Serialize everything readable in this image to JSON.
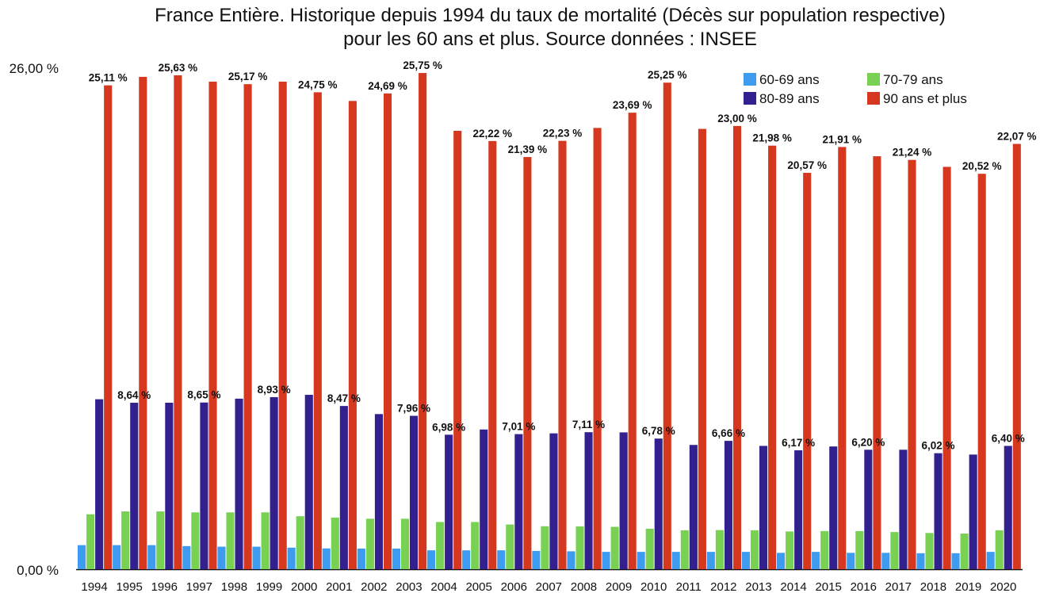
{
  "chart_data": {
    "type": "bar",
    "title_lines": [
      "France Entière. Historique depuis 1994 du taux de mortalité (Décès sur population respective)",
      "pour les 60 ans et plus. Source données : INSEE"
    ],
    "xlabel": "",
    "ylabel": "",
    "ylim": [
      0,
      26
    ],
    "ytick_labels": [
      "0,00 %",
      "26,00 %"
    ],
    "legend_position": "top-right",
    "categories": [
      "1994",
      "1995",
      "1996",
      "1997",
      "1998",
      "1999",
      "2000",
      "2001",
      "2002",
      "2003",
      "2004",
      "2005",
      "2006",
      "2007",
      "2008",
      "2009",
      "2010",
      "2011",
      "2012",
      "2013",
      "2014",
      "2015",
      "2016",
      "2017",
      "2018",
      "2019",
      "2020"
    ],
    "series": [
      {
        "name": "60-69 ans",
        "color": "#3d9cf0",
        "values": [
          1.25,
          1.25,
          1.25,
          1.2,
          1.17,
          1.17,
          1.12,
          1.08,
          1.07,
          1.07,
          0.98,
          0.98,
          0.98,
          0.95,
          0.93,
          0.9,
          0.9,
          0.9,
          0.9,
          0.9,
          0.85,
          0.9,
          0.85,
          0.85,
          0.83,
          0.83,
          0.9
        ],
        "labels": [
          "",
          "",
          "",
          "",
          "",
          "",
          "",
          "",
          "",
          "",
          "",
          "",
          "",
          "",
          "",
          "",
          "",
          "",
          "",
          "",
          "",
          "",
          "",
          "",
          "",
          "",
          ""
        ]
      },
      {
        "name": "70-79 ans",
        "color": "#78d152",
        "values": [
          2.85,
          3.0,
          3.0,
          2.95,
          2.95,
          2.95,
          2.75,
          2.68,
          2.62,
          2.62,
          2.45,
          2.45,
          2.32,
          2.23,
          2.22,
          2.2,
          2.1,
          2.02,
          2.03,
          2.02,
          1.96,
          1.98,
          1.98,
          1.93,
          1.88,
          1.85,
          2.02
        ],
        "labels": [
          "",
          "",
          "",
          "",
          "",
          "",
          "",
          "",
          "",
          "",
          "",
          "",
          "",
          "",
          "",
          "",
          "",
          "",
          "",
          "",
          "",
          "",
          "",
          "",
          "",
          "",
          ""
        ]
      },
      {
        "name": "80-89 ans",
        "color": "#33208f",
        "values": [
          8.82,
          8.64,
          8.64,
          8.65,
          8.85,
          8.93,
          9.05,
          8.47,
          8.05,
          7.96,
          6.98,
          7.25,
          7.01,
          7.05,
          7.11,
          7.1,
          6.78,
          6.45,
          6.66,
          6.4,
          6.17,
          6.37,
          6.2,
          6.2,
          6.02,
          5.95,
          6.4
        ],
        "labels": [
          "",
          "8,64 %",
          "",
          "8,65 %",
          "",
          "8,93 %",
          "",
          "8,47 %",
          "",
          "7,96 %",
          "6,98 %",
          "",
          "7,01 %",
          "",
          "7,11 %",
          "",
          "6,78 %",
          "",
          "6,66 %",
          "",
          "6,17 %",
          "",
          "6,20 %",
          "",
          "6,02 %",
          "",
          "6,40 %"
        ]
      },
      {
        "name": "90 ans et plus",
        "color": "#d5381f",
        "values": [
          25.11,
          25.55,
          25.63,
          25.3,
          25.17,
          25.3,
          24.75,
          24.3,
          24.69,
          25.75,
          22.75,
          22.22,
          21.39,
          22.23,
          22.9,
          23.69,
          25.25,
          22.85,
          23.0,
          21.98,
          20.57,
          21.91,
          21.43,
          21.24,
          20.88,
          20.52,
          22.07
        ],
        "labels": [
          "25,11 %",
          "",
          "25,63 %",
          "",
          "25,17 %",
          "",
          "24,75 %",
          "",
          "24,69 %",
          "25,75 %",
          "",
          "22,22 %",
          "21,39 %",
          "22,23 %",
          "",
          "23,69 %",
          "25,25 %",
          "",
          "23,00 %",
          "21,98 %",
          "20,57 %",
          "21,91 %",
          "",
          "21,24 %",
          "",
          "20,52 %",
          "22,07 %"
        ]
      }
    ]
  }
}
